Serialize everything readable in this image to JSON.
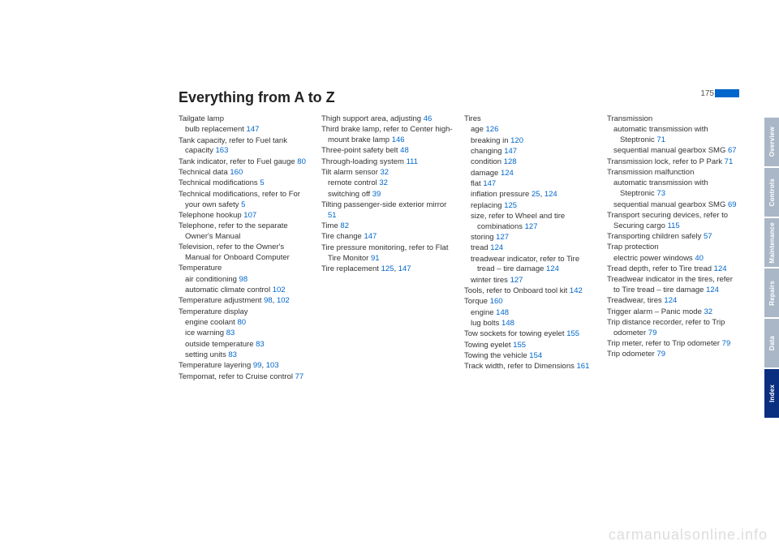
{
  "pageNumber": "175",
  "heading": "Everything from A to Z",
  "watermark": "carmanualsonline.info",
  "tabs": [
    {
      "label": "Overview",
      "active": false
    },
    {
      "label": "Controls",
      "active": false
    },
    {
      "label": "Maintenance",
      "active": false
    },
    {
      "label": "Repairs",
      "active": false
    },
    {
      "label": "Data",
      "active": false
    },
    {
      "label": "Index",
      "active": true
    }
  ],
  "columns": [
    [
      {
        "t": "Tailgate lamp"
      },
      {
        "t": "bulb replacement ",
        "r": "147",
        "sub": true
      },
      {
        "t": "Tank capacity, refer to Fuel tank capacity ",
        "r": "163"
      },
      {
        "t": "Tank indicator, refer to Fuel gauge ",
        "r": "80"
      },
      {
        "t": "Technical data ",
        "r": "160"
      },
      {
        "t": "Technical modifications ",
        "r": "5"
      },
      {
        "t": "Technical modifications, refer to For your own safety ",
        "r": "5"
      },
      {
        "t": "Telephone hookup ",
        "r": "107"
      },
      {
        "t": "Telephone, refer to the separate Owner's Manual"
      },
      {
        "t": "Television, refer to the Owner's Manual for Onboard Computer"
      },
      {
        "t": "Temperature"
      },
      {
        "t": "air conditioning ",
        "r": "98",
        "sub": true
      },
      {
        "t": "automatic climate control ",
        "r": "102",
        "sub": true
      },
      {
        "t": "Temperature adjustment ",
        "r": "98, 102"
      },
      {
        "t": "Temperature display"
      },
      {
        "t": "engine coolant ",
        "r": "80",
        "sub": true
      },
      {
        "t": "ice warning ",
        "r": "83",
        "sub": true
      },
      {
        "t": "outside temperature ",
        "r": "83",
        "sub": true
      },
      {
        "t": "setting units ",
        "r": "83",
        "sub": true
      },
      {
        "t": "Temperature layering ",
        "r": "99, 103"
      },
      {
        "t": "Tempomat, refer to Cruise control ",
        "r": "77"
      }
    ],
    [
      {
        "t": "Thigh support area, adjusting ",
        "r": "46"
      },
      {
        "t": "Third brake lamp, refer to Center high-mount brake lamp ",
        "r": "146"
      },
      {
        "t": "Three-point safety belt ",
        "r": "48"
      },
      {
        "t": "Through-loading system ",
        "r": "111"
      },
      {
        "t": "Tilt alarm sensor ",
        "r": "32"
      },
      {
        "t": "remote control ",
        "r": "32",
        "sub": true
      },
      {
        "t": "switching off ",
        "r": "39",
        "sub": true
      },
      {
        "t": "Tilting passenger-side exterior mirror ",
        "r": "51"
      },
      {
        "t": "Time ",
        "r": "82"
      },
      {
        "t": "Tire change ",
        "r": "147"
      },
      {
        "t": "Tire pressure monitoring, refer to Flat Tire Monitor ",
        "r": "91"
      },
      {
        "t": "Tire replacement ",
        "r": "125, 147"
      }
    ],
    [
      {
        "t": "Tires"
      },
      {
        "t": "age ",
        "r": "126",
        "sub": true
      },
      {
        "t": "breaking in ",
        "r": "120",
        "sub": true
      },
      {
        "t": "changing ",
        "r": "147",
        "sub": true
      },
      {
        "t": "condition ",
        "r": "128",
        "sub": true
      },
      {
        "t": "damage ",
        "r": "124",
        "sub": true
      },
      {
        "t": "flat ",
        "r": "147",
        "sub": true
      },
      {
        "t": "inflation pressure ",
        "r": "25, 124",
        "sub": true
      },
      {
        "t": "replacing ",
        "r": "125",
        "sub": true
      },
      {
        "t": "size, refer to Wheel and tire combinations ",
        "r": "127",
        "sub": true
      },
      {
        "t": "storing ",
        "r": "127",
        "sub": true
      },
      {
        "t": "tread ",
        "r": "124",
        "sub": true
      },
      {
        "t": "treadwear indicator, refer to Tire tread – tire damage ",
        "r": "124",
        "sub": true
      },
      {
        "t": "winter tires ",
        "r": "127",
        "sub": true
      },
      {
        "t": "Tools, refer to Onboard tool kit ",
        "r": "142"
      },
      {
        "t": "Torque ",
        "r": "160"
      },
      {
        "t": "engine ",
        "r": "148",
        "sub": true
      },
      {
        "t": "lug bolts ",
        "r": "148",
        "sub": true
      },
      {
        "t": "Tow sockets for towing eyelet ",
        "r": "155"
      },
      {
        "t": "Towing eyelet ",
        "r": "155"
      },
      {
        "t": "Towing the vehicle ",
        "r": "154"
      },
      {
        "t": "Track width, refer to Dimensions ",
        "r": "161"
      }
    ],
    [
      {
        "t": "Transmission"
      },
      {
        "t": "automatic transmission with Steptronic ",
        "r": "71",
        "sub": true
      },
      {
        "t": "sequential manual gearbox SMG ",
        "r": "67",
        "sub": true
      },
      {
        "t": "Transmission lock, refer to P Park ",
        "r": "71"
      },
      {
        "t": "Transmission malfunction"
      },
      {
        "t": "automatic transmission with Steptronic ",
        "r": "73",
        "sub": true
      },
      {
        "t": "sequential manual gearbox SMG ",
        "r": "69",
        "sub": true
      },
      {
        "t": "Transport securing devices, refer to Securing cargo ",
        "r": "115"
      },
      {
        "t": "Transporting children safely ",
        "r": "57"
      },
      {
        "t": "Trap protection"
      },
      {
        "t": "electric power windows ",
        "r": "40",
        "sub": true
      },
      {
        "t": "Tread depth, refer to Tire tread ",
        "r": "124"
      },
      {
        "t": "Treadwear indicator in the tires, refer to Tire tread – tire damage ",
        "r": "124"
      },
      {
        "t": "Treadwear, tires ",
        "r": "124"
      },
      {
        "t": "Trigger alarm – Panic mode ",
        "r": "32"
      },
      {
        "t": "Trip distance recorder, refer to Trip odometer ",
        "r": "79"
      },
      {
        "t": "Trip meter, refer to Trip odometer ",
        "r": "79"
      },
      {
        "t": "Trip odometer ",
        "r": "79"
      }
    ]
  ]
}
